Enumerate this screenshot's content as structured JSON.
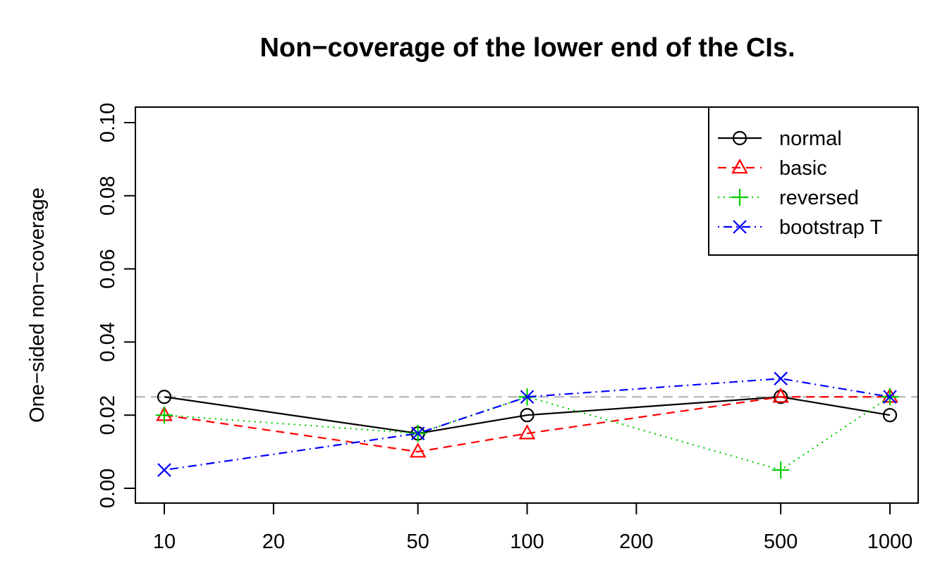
{
  "chart_data": {
    "type": "line",
    "title": "Non−coverage of the lower end of the CIs.",
    "xlabel": "",
    "ylabel": "One−sided non−coverage",
    "x_scale": "log",
    "x": [
      10,
      50,
      100,
      500,
      1000
    ],
    "x_ticks": [
      10,
      20,
      50,
      100,
      200,
      500,
      1000
    ],
    "x_tick_labels": [
      "10",
      "20",
      "50",
      "100",
      "200",
      "500",
      "1000"
    ],
    "y_ticks": [
      0.0,
      0.02,
      0.04,
      0.06,
      0.08,
      0.1
    ],
    "y_tick_labels": [
      "0.00",
      "0.02",
      "0.04",
      "0.06",
      "0.08",
      "0.10"
    ],
    "ylim": [
      0.0,
      0.1
    ],
    "reference_line": {
      "y": 0.025,
      "color": "#bebebe",
      "style": "dashed"
    },
    "legend_position": "top-right",
    "series": [
      {
        "name": "normal",
        "values": [
          0.025,
          0.015,
          0.02,
          0.025,
          0.02
        ],
        "color": "#000000",
        "line_style": "solid",
        "marker": "circle"
      },
      {
        "name": "basic",
        "values": [
          0.02,
          0.01,
          0.015,
          0.025,
          0.025
        ],
        "color": "#ff0000",
        "line_style": "dashed",
        "marker": "triangle"
      },
      {
        "name": "reversed",
        "values": [
          0.02,
          0.015,
          0.025,
          0.005,
          0.025
        ],
        "color": "#00cd00",
        "line_style": "dotted",
        "marker": "plus"
      },
      {
        "name": "bootstrap T",
        "values": [
          0.005,
          0.015,
          0.025,
          0.03,
          0.025
        ],
        "color": "#0000ff",
        "line_style": "dotdash",
        "marker": "cross"
      }
    ]
  }
}
